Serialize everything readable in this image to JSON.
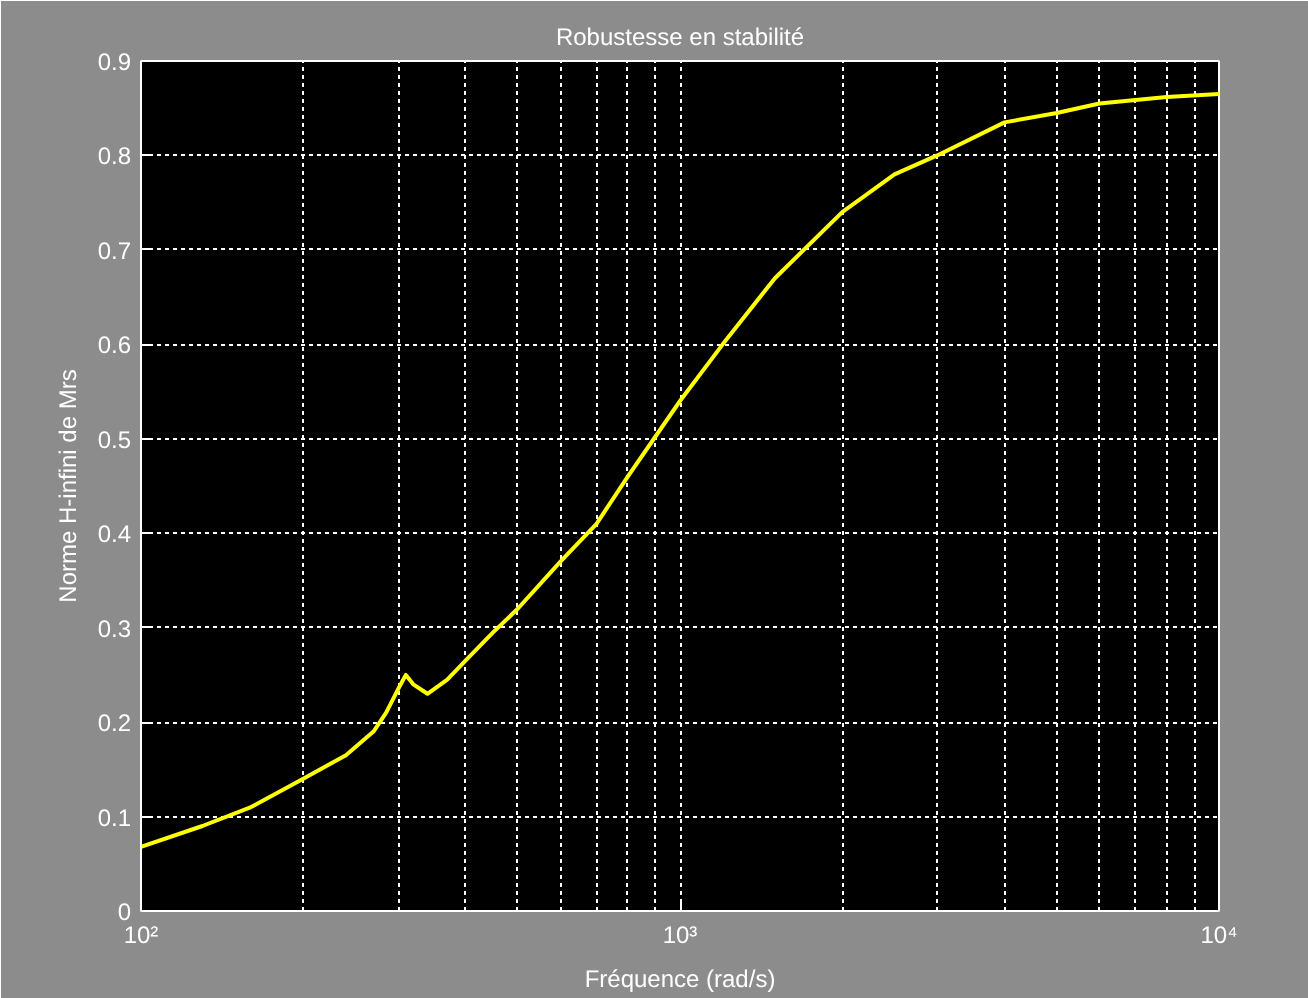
{
  "chart_data": {
    "type": "line",
    "title": "Robustesse en stabilité",
    "xlabel": "Fréquence (rad/s)",
    "ylabel": "Norme H-infini de Mrs",
    "log": "x",
    "grid": true,
    "line_style": "solid",
    "marker": "none",
    "xlim": [
      100,
      10000
    ],
    "xticks": [
      {
        "value": 100,
        "label": "10²"
      },
      {
        "value": 1000,
        "label": "10³"
      },
      {
        "value": 10000,
        "label": "10⁴"
      }
    ],
    "ylim": [
      0,
      0.9
    ],
    "yticks": [
      0,
      0.1,
      0.2,
      0.3,
      0.4,
      0.5,
      0.6,
      0.7,
      0.8,
      0.9
    ],
    "x": [
      100,
      130,
      160,
      200,
      240,
      270,
      285,
      300,
      310,
      320,
      340,
      370,
      400,
      450,
      500,
      600,
      700,
      800,
      1000,
      1200,
      1500,
      2000,
      2500,
      3000,
      4000,
      5000,
      6000,
      8000,
      10000
    ],
    "series": [
      {
        "color": "#ffff00",
        "values": [
          0.068,
          0.09,
          0.11,
          0.14,
          0.165,
          0.19,
          0.21,
          0.235,
          0.25,
          0.24,
          0.23,
          0.245,
          0.265,
          0.295,
          0.32,
          0.37,
          0.41,
          0.46,
          0.54,
          0.6,
          0.67,
          0.74,
          0.78,
          0.8,
          0.835,
          0.845,
          0.855,
          0.862,
          0.865
        ]
      }
    ]
  }
}
